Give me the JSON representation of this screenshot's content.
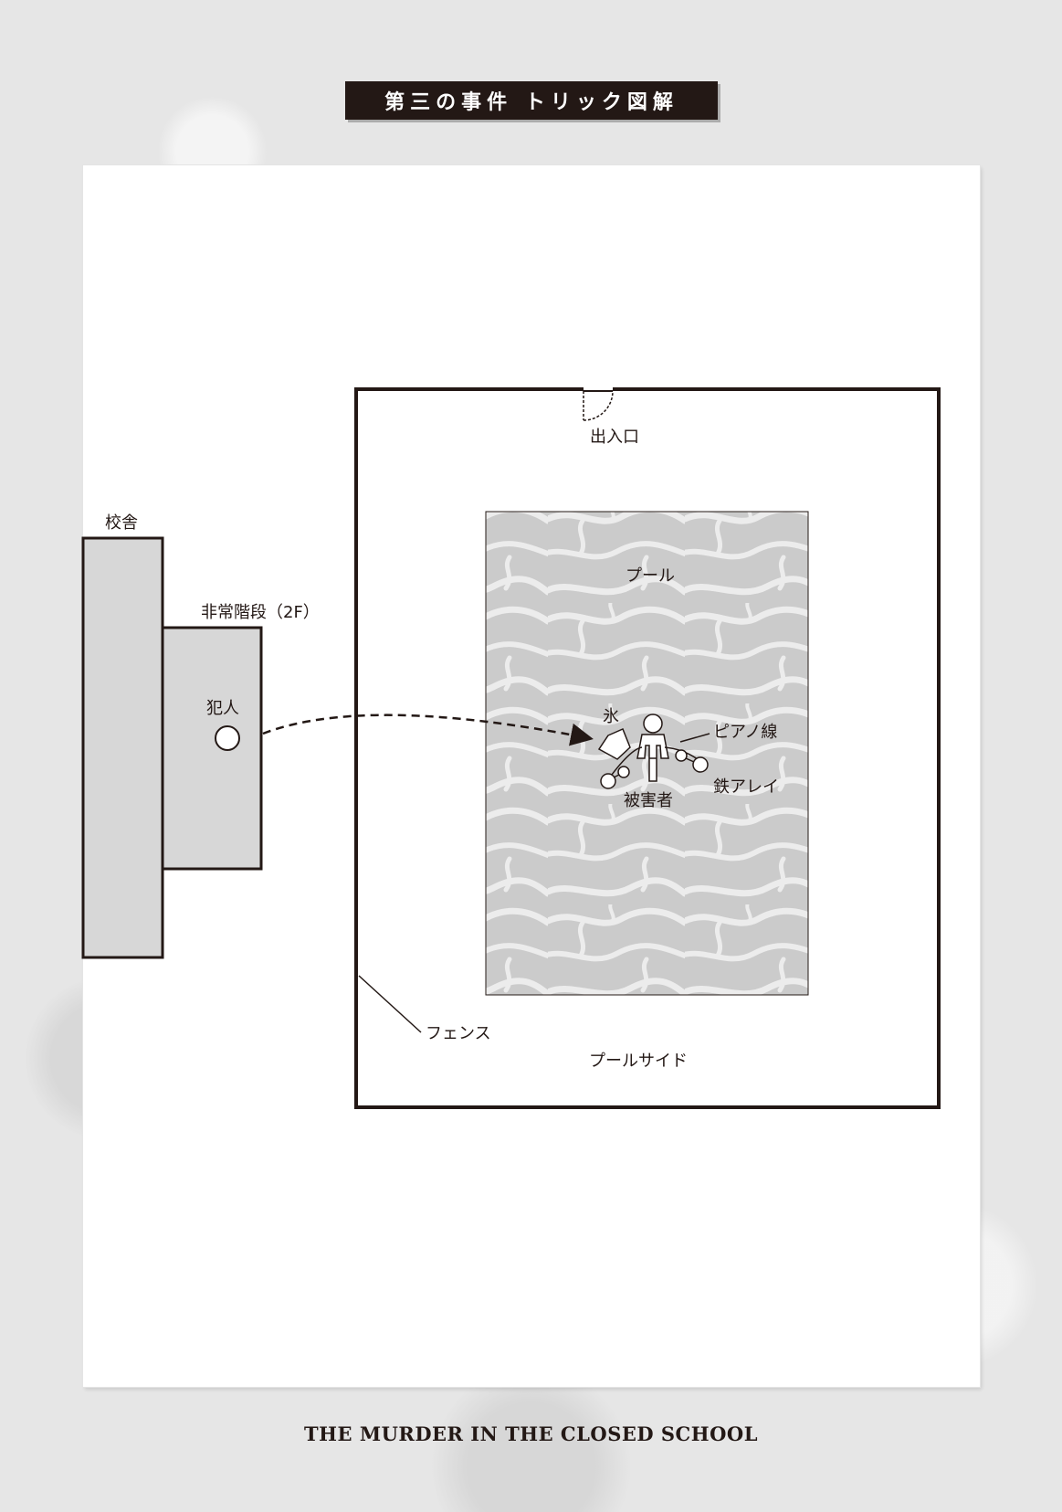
{
  "title": "第三の事件 トリック図解",
  "labels": {
    "school_building": "校舎",
    "emergency_stairs": "非常階段（2F）",
    "culprit": "犯人",
    "entrance": "出入口",
    "pool": "プール",
    "ice": "氷",
    "piano_wire": "ピアノ線",
    "victim": "被害者",
    "dumbbell": "鉄アレイ",
    "fence": "フェンス",
    "poolside": "プールサイド"
  },
  "footer": "THE MURDER IN THE CLOSED SCHOOL",
  "colors": {
    "ink": "#231815",
    "building_fill": "#d7d7d7",
    "pool_fill": "#cbcbcb",
    "water_highlight": "#ececec",
    "background": "#e6e6e6"
  }
}
